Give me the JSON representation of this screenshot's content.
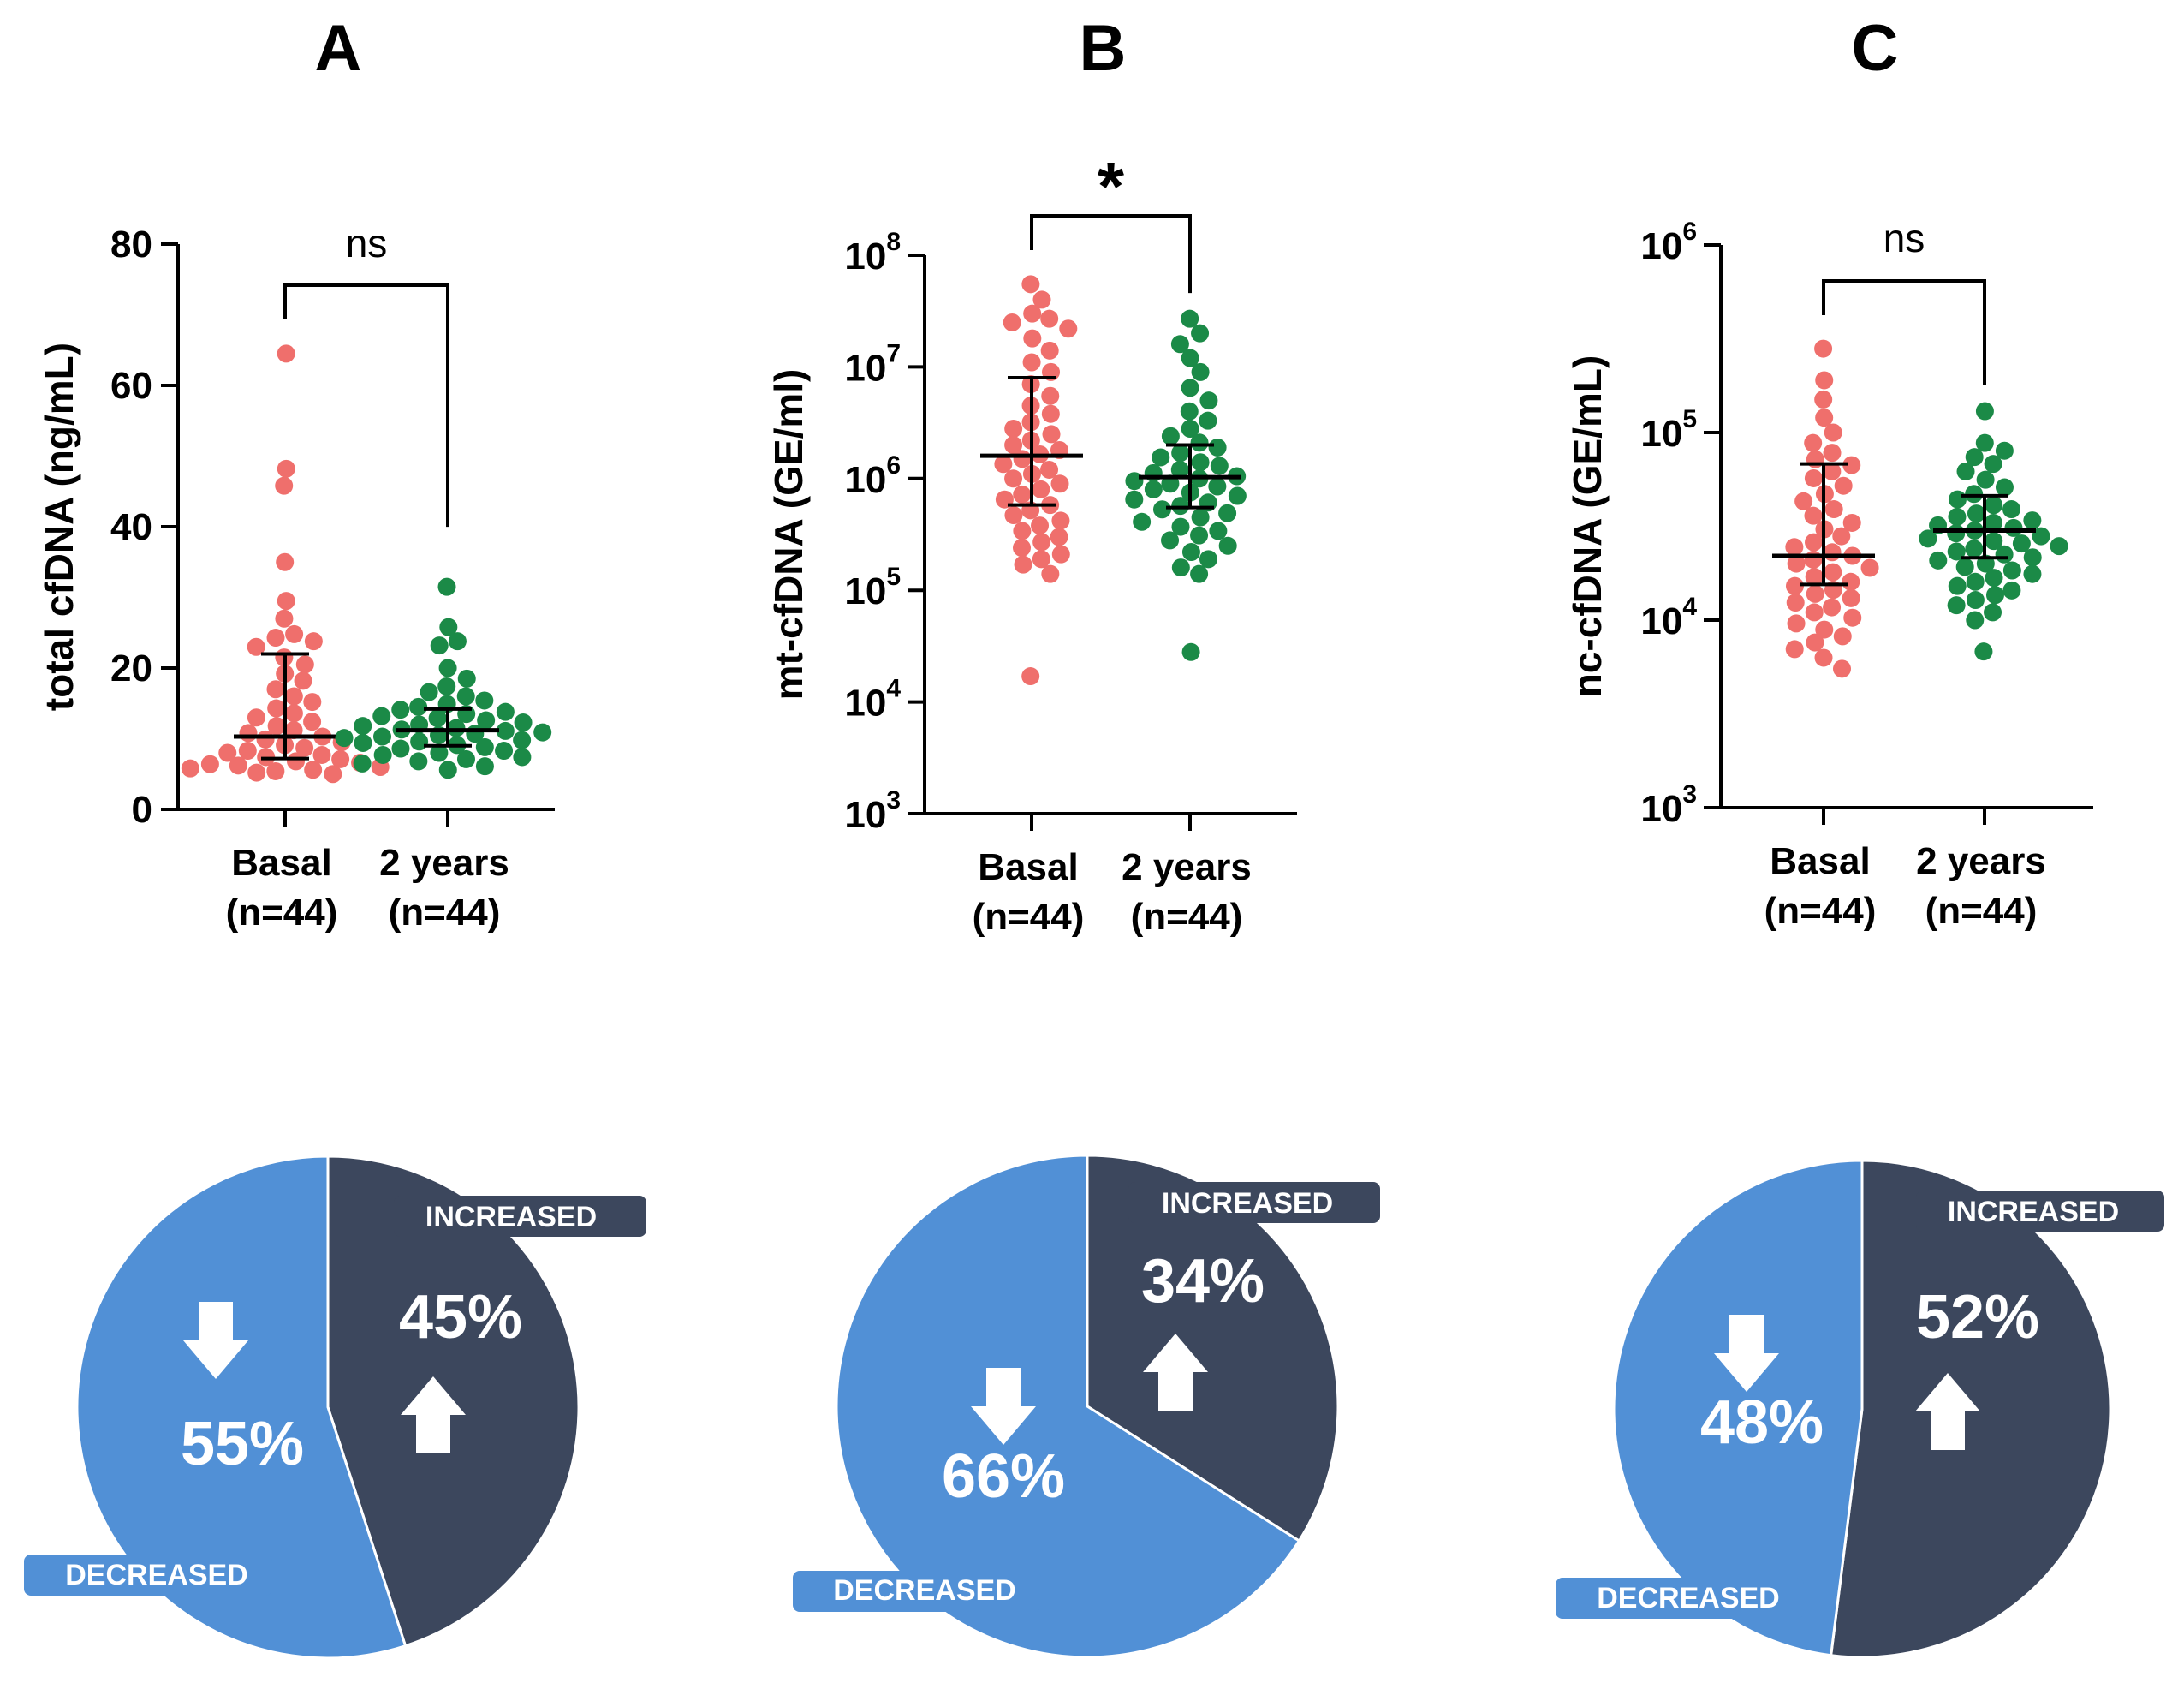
{
  "colors": {
    "basal_points": "#ef6f6c",
    "two_year_points": "#1b8a47",
    "decreased": "#5190d6",
    "increased": "#3c475d",
    "axis": "#000000"
  },
  "chart_data": [
    {
      "type": "scatter",
      "panel": "A",
      "ylabel": "total cfDNA  (ng/mL)",
      "yscale": "linear",
      "ylim": [
        0,
        80
      ],
      "yticks": [
        0,
        20,
        40,
        60,
        80
      ],
      "ytick_labels": [
        "0",
        "20",
        "40",
        "60",
        "80"
      ],
      "categories": [
        {
          "name": "Basal",
          "n": "(n=44)"
        },
        {
          "name": "2 years",
          "n": "(n=44)"
        }
      ],
      "significance": "ns",
      "series": [
        {
          "name": "Basal",
          "color": "#ef6f6c",
          "median": 10.3,
          "iqr": [
            7.2,
            22.0
          ],
          "values": [
            64.5,
            48.2,
            45.8,
            35.0,
            29.5,
            27.0,
            24.8,
            24.3,
            23.8,
            23.0,
            21.5,
            20.5,
            19.2,
            18.2,
            17.0,
            16.0,
            15.2,
            14.3,
            13.6,
            13.0,
            12.4,
            11.8,
            11.2,
            10.8,
            10.3,
            9.9,
            9.5,
            9.1,
            8.7,
            8.3,
            8.0,
            7.7,
            7.4,
            7.1,
            6.8,
            6.6,
            6.4,
            6.2,
            6.0,
            5.8,
            5.6,
            5.4,
            5.2,
            5.0
          ]
        },
        {
          "name": "2 years",
          "color": "#1b8a47",
          "median": 11.2,
          "iqr": [
            9.0,
            14.2
          ],
          "values": [
            31.5,
            25.8,
            23.8,
            23.2,
            20.0,
            18.5,
            17.4,
            16.6,
            16.0,
            15.4,
            14.9,
            14.5,
            14.1,
            13.8,
            13.5,
            13.2,
            12.9,
            12.6,
            12.3,
            12.0,
            11.8,
            11.5,
            11.3,
            11.1,
            10.9,
            10.7,
            10.5,
            10.3,
            10.1,
            9.8,
            9.6,
            9.4,
            9.1,
            8.8,
            8.6,
            8.3,
            8.0,
            7.7,
            7.4,
            7.1,
            6.8,
            6.5,
            6.1,
            5.6
          ]
        }
      ]
    },
    {
      "type": "scatter",
      "panel": "B",
      "ylabel": "mt-cfDNA (GE/ml)",
      "yscale": "log",
      "ylim": [
        3,
        8
      ],
      "yticks": [
        3,
        4,
        5,
        6,
        7,
        8
      ],
      "ytick_base": "10",
      "ytick_exponents": [
        "3",
        "4",
        "5",
        "6",
        "7",
        "8"
      ],
      "categories": [
        {
          "name": "Basal",
          "n": "(n=44)"
        },
        {
          "name": "2 years",
          "n": "(n=44)"
        }
      ],
      "significance": "*",
      "series": [
        {
          "name": "Basal",
          "color": "#ef6f6c",
          "median": 1600000,
          "iqr": [
            580000,
            8000000
          ],
          "values": [
            55000000,
            40000000,
            30000000,
            27000000,
            25000000,
            22000000,
            18000000,
            14000000,
            11000000,
            9000000,
            7000000,
            5500000,
            4500000,
            3800000,
            3200000,
            2800000,
            2500000,
            2200000,
            2000000,
            1800000,
            1650000,
            1500000,
            1350000,
            1200000,
            1100000,
            1000000,
            900000,
            800000,
            720000,
            650000,
            580000,
            520000,
            470000,
            420000,
            380000,
            340000,
            300000,
            270000,
            240000,
            210000,
            190000,
            170000,
            140000,
            17000
          ]
        },
        {
          "name": "2 years",
          "color": "#1b8a47",
          "median": 1030000,
          "iqr": [
            550000,
            2000000
          ],
          "values": [
            27000000,
            20000000,
            16000000,
            12000000,
            9000000,
            6500000,
            5000000,
            4000000,
            3300000,
            2800000,
            2400000,
            2100000,
            1900000,
            1700000,
            1550000,
            1400000,
            1300000,
            1200000,
            1120000,
            1050000,
            1000000,
            950000,
            900000,
            850000,
            800000,
            750000,
            700000,
            650000,
            610000,
            570000,
            530000,
            490000,
            450000,
            410000,
            370000,
            340000,
            310000,
            280000,
            250000,
            220000,
            190000,
            160000,
            140000,
            28000
          ]
        }
      ]
    },
    {
      "type": "scatter",
      "panel": "C",
      "ylabel": "nc-cfDNA (GE/mL)",
      "yscale": "log",
      "ylim": [
        3,
        6
      ],
      "yticks": [
        3,
        4,
        5,
        6
      ],
      "ytick_base": "10",
      "ytick_exponents": [
        "3",
        "4",
        "5",
        "6"
      ],
      "categories": [
        {
          "name": "Basal",
          "n": "(n=44)"
        },
        {
          "name": "2 years",
          "n": "(n=44)"
        }
      ],
      "significance": "ns",
      "series": [
        {
          "name": "Basal",
          "color": "#ef6f6c",
          "median": 22000,
          "iqr": [
            15500,
            68000
          ],
          "values": [
            280000,
            190000,
            150000,
            120000,
            100000,
            88000,
            78000,
            72000,
            67000,
            62000,
            57000,
            52000,
            47000,
            43000,
            39000,
            36000,
            33000,
            30500,
            28000,
            26000,
            24500,
            23000,
            22000,
            21000,
            20000,
            19000,
            18000,
            17000,
            16000,
            15200,
            14500,
            13800,
            13100,
            12400,
            11700,
            11000,
            10300,
            9600,
            8900,
            8200,
            7600,
            7000,
            6300,
            5500
          ]
        },
        {
          "name": "2 years",
          "color": "#1b8a47",
          "median": 30000,
          "iqr": [
            21500,
            46000
          ],
          "values": [
            130000,
            88000,
            80000,
            74000,
            68000,
            62000,
            56000,
            51000,
            47000,
            44000,
            41000,
            39000,
            37000,
            35500,
            34000,
            33000,
            32000,
            31000,
            30000,
            29000,
            28000,
            27200,
            26400,
            25600,
            24800,
            24000,
            23200,
            22400,
            21600,
            20800,
            20000,
            19200,
            18400,
            17600,
            16800,
            16000,
            15200,
            14400,
            13600,
            12800,
            12000,
            11000,
            10000,
            6800
          ]
        }
      ]
    },
    {
      "type": "pie",
      "panel": "A",
      "slices": [
        {
          "label": "INCREASED",
          "value": 45,
          "text": "45%",
          "color": "#3c475d"
        },
        {
          "label": "DECREASED",
          "value": 55,
          "text": "55%",
          "color": "#5190d6"
        }
      ]
    },
    {
      "type": "pie",
      "panel": "B",
      "slices": [
        {
          "label": "INCREASED",
          "value": 34,
          "text": "34%",
          "color": "#3c475d"
        },
        {
          "label": "DECREASED",
          "value": 66,
          "text": "66%",
          "color": "#5190d6"
        }
      ]
    },
    {
      "type": "pie",
      "panel": "C",
      "slices": [
        {
          "label": "INCREASED",
          "value": 52,
          "text": "52%",
          "color": "#3c475d"
        },
        {
          "label": "DECREASED",
          "value": 48,
          "text": "48%",
          "color": "#5190d6"
        }
      ]
    }
  ]
}
